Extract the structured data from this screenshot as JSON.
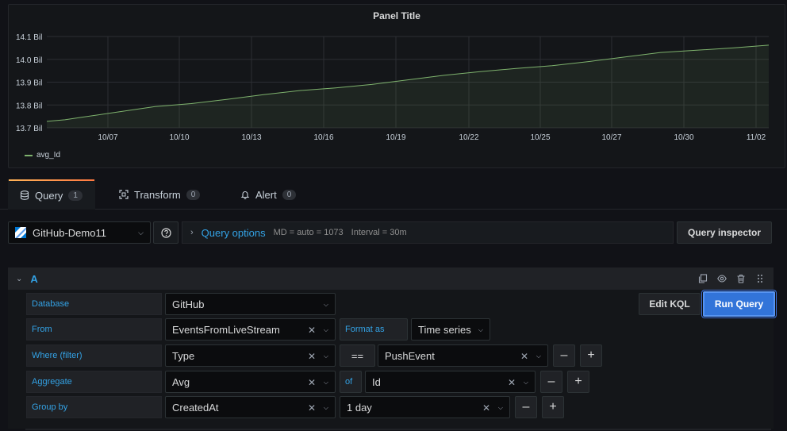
{
  "panel": {
    "title": "Panel Title",
    "legend": [
      {
        "name": "avg_Id",
        "color": "#7eb26d"
      }
    ]
  },
  "chart_data": {
    "type": "area",
    "title": "Panel Title",
    "y_ticks": [
      "14.1 Bil",
      "14.0 Bil",
      "13.9 Bil",
      "13.8 Bil",
      "13.7 Bil"
    ],
    "x_ticks": [
      "10/07",
      "10/10",
      "10/13",
      "10/16",
      "10/19",
      "10/22",
      "10/25",
      "10/27",
      "10/30",
      "11/02"
    ],
    "ylim": [
      13.7,
      14.1
    ],
    "grid": true,
    "legend_placement": "bottom-left",
    "series": [
      {
        "name": "avg_Id",
        "color": "#7eb26d",
        "points": [
          [
            0,
            13.728
          ],
          [
            0.5,
            13.735
          ],
          [
            1,
            13.747
          ],
          [
            2,
            13.77
          ],
          [
            3,
            13.793
          ],
          [
            4,
            13.806
          ],
          [
            5,
            13.825
          ],
          [
            6,
            13.845
          ],
          [
            7,
            13.863
          ],
          [
            8,
            13.875
          ],
          [
            9,
            13.89
          ],
          [
            10,
            13.91
          ],
          [
            11,
            13.93
          ],
          [
            12,
            13.946
          ],
          [
            13,
            13.96
          ],
          [
            14,
            13.972
          ],
          [
            15,
            13.99
          ],
          [
            16,
            14.01
          ],
          [
            17,
            14.03
          ],
          [
            18,
            14.04
          ],
          [
            19,
            14.05
          ],
          [
            20,
            14.062
          ]
        ]
      }
    ]
  },
  "tabs": [
    {
      "label": "Query",
      "count": "1"
    },
    {
      "label": "Transform",
      "count": "0"
    },
    {
      "label": "Alert",
      "count": "0"
    }
  ],
  "toolbar": {
    "datasource": "GitHub-Demo11",
    "query_options_label": "Query options",
    "md": "MD = auto = 1073",
    "interval": "Interval = 30m",
    "query_inspector": "Query inspector"
  },
  "query": {
    "letter": "A",
    "edit_kql": "Edit KQL",
    "run_query": "Run Query",
    "database_label": "Database",
    "database_value": "GitHub",
    "from_label": "From",
    "from_value": "EventsFromLiveStream",
    "format_as_label": "Format as",
    "format_as_value": "Time series",
    "where_label": "Where (filter)",
    "where_column": "Type",
    "where_operator": "==",
    "where_value": "PushEvent",
    "aggregate_label": "Aggregate",
    "aggregate_value": "Avg",
    "of_label": "of",
    "of_value": "Id",
    "groupby_label": "Group by",
    "groupby_value": "CreatedAt",
    "groupby_interval": "1 day"
  },
  "colors": {
    "accent": "#33a2e5",
    "primary_button": "#3274d9",
    "series": "#7eb26d",
    "tab_highlight": "#ff9830"
  }
}
